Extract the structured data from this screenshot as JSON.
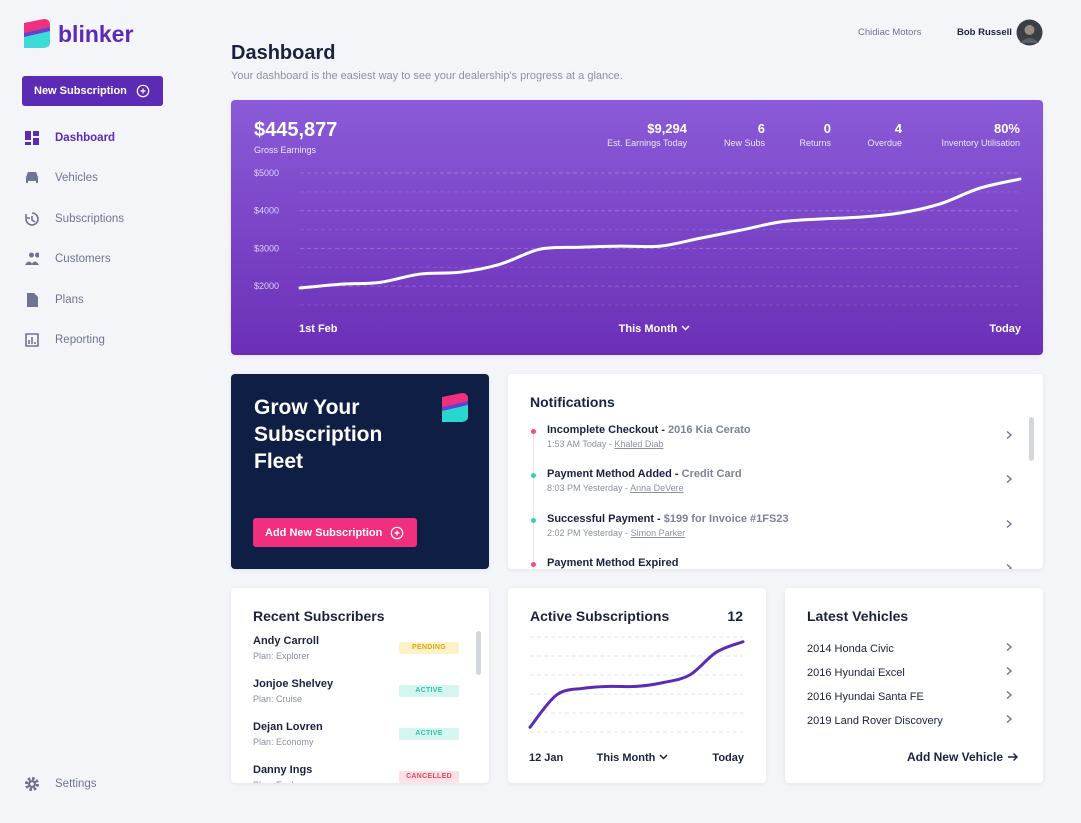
{
  "brand": "blinker",
  "sidebar": {
    "cta": "New Subscription",
    "nav": [
      "Dashboard",
      "Vehicles",
      "Subscriptions",
      "Customers",
      "Plans",
      "Reporting"
    ],
    "settings": "Settings"
  },
  "header": {
    "dealer": "Chidiac Motors",
    "user": "Bob Russell",
    "title": "Dashboard",
    "subtitle": "Your dashboard is the easiest way to see your dealership's progress at a glance."
  },
  "earnings": {
    "total": "$445,877",
    "total_label": "Gross Earnings",
    "stats": [
      {
        "value": "$9,294",
        "label": "Est. Earnings Today"
      },
      {
        "value": "6",
        "label": "New Subs"
      },
      {
        "value": "0",
        "label": "Returns"
      },
      {
        "value": "4",
        "label": "Overdue"
      },
      {
        "value": "80%",
        "label": "Inventory Utilisation"
      }
    ],
    "chart": {
      "type": "line",
      "values": [
        1950,
        2050,
        2100,
        2320,
        2370,
        2580,
        2980,
        3030,
        3060,
        3060,
        3270,
        3480,
        3700,
        3780,
        3830,
        3940,
        4180,
        4600,
        4840
      ],
      "ylim": [
        1500,
        5000
      ],
      "yticks": [
        {
          "value": 2000,
          "label": "$2000"
        },
        {
          "value": 3000,
          "label": "$3000"
        },
        {
          "value": 4000,
          "label": "$4000"
        },
        {
          "value": 5000,
          "label": "$5000"
        }
      ],
      "x_start": "1st Feb",
      "period": "This Month",
      "x_end": "Today"
    }
  },
  "promo": {
    "title": "Grow Your Subscription Fleet",
    "button": "Add New Subscription"
  },
  "notifications": {
    "title": "Notifications",
    "items": [
      {
        "title": "Incomplete Checkout -",
        "detail": "2016 Kia Cerato",
        "time": "1:53 AM Today -",
        "person": "Khaled Diab"
      },
      {
        "title": "Payment Method Added -",
        "detail": "Credit Card",
        "time": "8:03 PM Yesterday -",
        "person": "Anna DeVere"
      },
      {
        "title": "Successful Payment -",
        "detail": "$199 for Invoice #1FS23",
        "time": "2:02 PM Yesterday -",
        "person": "Simon Parker"
      },
      {
        "title": "Payment Method Expired"
      }
    ]
  },
  "subscribers": {
    "title": "Recent Subscribers",
    "items": [
      {
        "name": "Andy Carroll",
        "plan": "Plan: Explorer",
        "status": "Pending"
      },
      {
        "name": "Jonjoe Shelvey",
        "plan": "Plan: Cruise",
        "status": "Active"
      },
      {
        "name": "Dejan Lovren",
        "plan": "Plan: Economy",
        "status": "Active"
      },
      {
        "name": "Danny Ings",
        "plan": "Plan: Explorer",
        "status": "Cancelled"
      }
    ]
  },
  "active": {
    "title": "Active Subscriptions",
    "count": "12",
    "chart": {
      "type": "line",
      "values": [
        5,
        39,
        46,
        48,
        48,
        52,
        60,
        84,
        95
      ],
      "ylim": [
        0,
        100
      ],
      "x_start": "12 Jan",
      "period": "This Month",
      "x_end": "Today"
    }
  },
  "vehicles": {
    "title": "Latest Vehicles",
    "items": [
      "2014 Honda Civic",
      "2016 Hyundai Excel",
      "2016 Hyundai Santa FE",
      "2019 Land Rover Discovery"
    ],
    "link": "Add New Vehicle"
  }
}
